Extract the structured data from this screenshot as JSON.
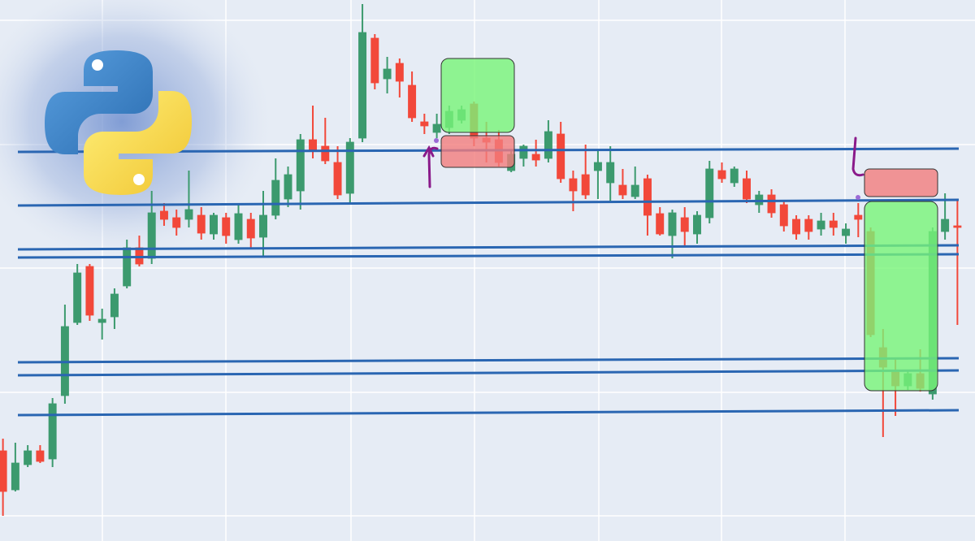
{
  "chart_data": {
    "type": "candlestick",
    "categories": [
      null,
      null,
      null,
      null,
      null,
      null,
      null,
      null,
      null,
      null,
      null,
      null,
      null,
      null,
      null,
      null,
      null,
      null,
      null,
      null,
      null,
      null,
      null,
      null,
      null,
      null,
      null,
      null,
      null,
      null,
      null,
      null,
      null,
      null,
      null,
      null,
      null,
      null,
      null,
      null,
      null,
      null,
      null,
      null,
      null,
      null,
      null,
      null,
      null,
      null,
      null,
      null,
      null,
      null,
      null,
      null,
      null,
      null,
      null,
      null,
      null,
      null,
      null,
      null,
      null,
      null,
      null,
      null,
      null,
      null,
      null,
      null,
      null,
      null,
      null,
      null,
      null,
      null
    ],
    "open": [
      111,
      63,
      94,
      111,
      101,
      179,
      269,
      338,
      269,
      276,
      314,
      361,
      348,
      406,
      398,
      396,
      401,
      378,
      398,
      371,
      396,
      374,
      401,
      421,
      431,
      494,
      486,
      466,
      428,
      496,
      619,
      569,
      588,
      561,
      516,
      503,
      509,
      518,
      538,
      496,
      494,
      456,
      471,
      476,
      471,
      501,
      446,
      451,
      456,
      441,
      438,
      424,
      446,
      403,
      376,
      398,
      378,
      398,
      456,
      441,
      446,
      414,
      426,
      414,
      396,
      396,
      384,
      394,
      376,
      401,
      381,
      238,
      208,
      191,
      206,
      181,
      381,
      388
    ],
    "high": [
      126,
      121,
      118,
      118,
      176,
      291,
      341,
      341,
      286,
      311,
      371,
      376,
      431,
      416,
      408,
      456,
      411,
      404,
      404,
      416,
      404,
      431,
      471,
      461,
      501,
      536,
      521,
      486,
      496,
      661,
      624,
      596,
      594,
      578,
      526,
      526,
      536,
      536,
      541,
      516,
      506,
      481,
      488,
      494,
      518,
      516,
      456,
      488,
      481,
      486,
      458,
      461,
      451,
      411,
      408,
      411,
      406,
      468,
      466,
      461,
      456,
      431,
      433,
      418,
      401,
      401,
      404,
      404,
      391,
      416,
      386,
      261,
      226,
      211,
      236,
      386,
      428,
      421
    ],
    "low": [
      31,
      61,
      91,
      96,
      91,
      169,
      266,
      271,
      248,
      261,
      311,
      338,
      341,
      388,
      376,
      386,
      371,
      371,
      366,
      366,
      361,
      351,
      396,
      411,
      408,
      471,
      464,
      421,
      416,
      491,
      556,
      551,
      546,
      516,
      501,
      496,
      501,
      514,
      486,
      466,
      461,
      454,
      461,
      461,
      466,
      441,
      406,
      421,
      421,
      418,
      421,
      421,
      376,
      376,
      348,
      364,
      366,
      391,
      441,
      436,
      416,
      404,
      398,
      381,
      371,
      371,
      376,
      376,
      366,
      374,
      251,
      128,
      154,
      186,
      184,
      174,
      371,
      266
    ],
    "close": [
      61,
      96,
      111,
      98,
      169,
      264,
      330,
      278,
      273,
      304,
      361,
      341,
      404,
      396,
      386,
      408,
      379,
      401,
      376,
      403,
      373,
      401,
      444,
      451,
      494,
      481,
      468,
      426,
      491,
      626,
      564,
      581,
      566,
      521,
      511,
      513,
      529,
      531,
      496,
      491,
      466,
      476,
      486,
      469,
      504,
      446,
      431,
      426,
      466,
      466,
      426,
      438,
      401,
      378,
      404,
      381,
      401,
      458,
      446,
      458,
      421,
      426,
      404,
      388,
      378,
      381,
      394,
      386,
      384,
      396,
      254,
      214,
      191,
      206,
      188,
      381,
      396,
      386
    ],
    "up_color": "#3c9a6e",
    "down_color": "#f2483a",
    "ylim": [
      0,
      666
    ],
    "yticks": [
      31,
      183,
      336,
      488,
      641
    ],
    "grid": true,
    "levels": [
      [
        479,
        483
      ],
      [
        413,
        420
      ],
      [
        359,
        364
      ],
      [
        349,
        353
      ],
      [
        220,
        225
      ],
      [
        204,
        210
      ],
      [
        155,
        161
      ]
    ],
    "level_color": "#2a66b2"
  }
}
